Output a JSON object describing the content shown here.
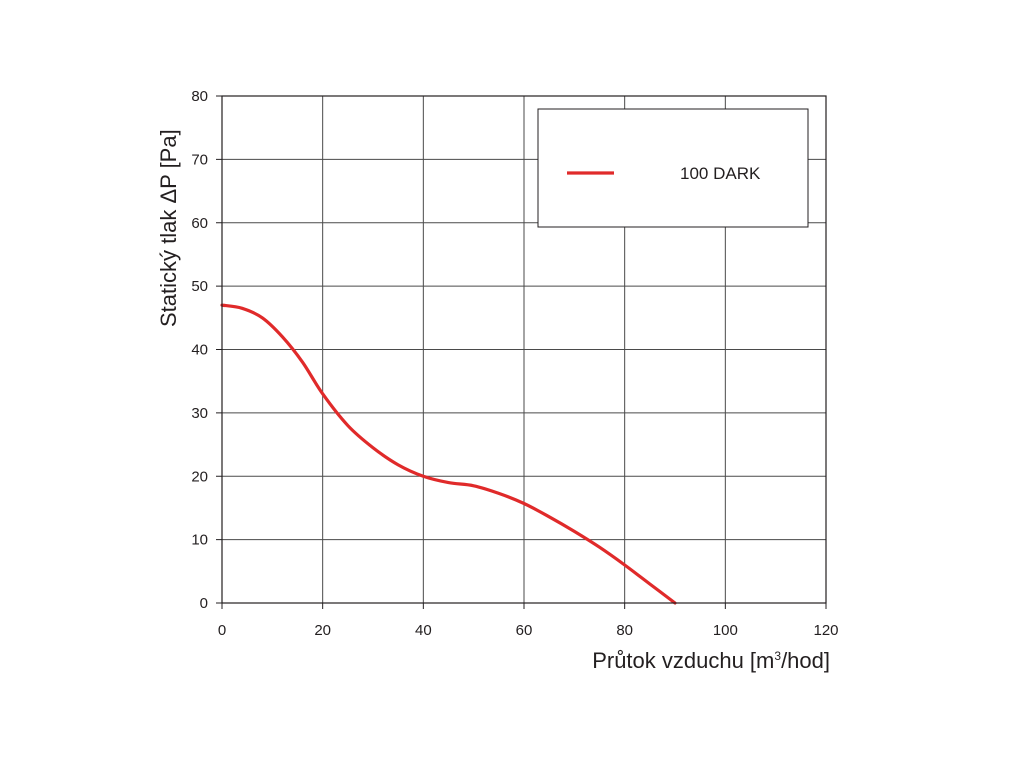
{
  "chart_data": {
    "type": "line",
    "xlabel": "Průtok vzduchu [m",
    "xlabel_superscript": "3",
    "xlabel_suffix": "/hod]",
    "ylabel": "Statický tlak  ΔP [Pa]",
    "xlim": [
      0,
      120
    ],
    "ylim": [
      0,
      80
    ],
    "x_ticks": [
      0,
      20,
      40,
      60,
      80,
      100,
      120
    ],
    "y_ticks": [
      0,
      10,
      20,
      30,
      40,
      50,
      60,
      70,
      80
    ],
    "grid": true,
    "legend_position": "top-right",
    "series": [
      {
        "name": "100 DARK",
        "color": "#e02a2a",
        "x": [
          0,
          4,
          8,
          12,
          16,
          20,
          25,
          30,
          35,
          40,
          45,
          50,
          55,
          60,
          65,
          70,
          75,
          80,
          85,
          90
        ],
        "y": [
          47,
          46.5,
          45,
          42,
          38,
          33,
          28,
          24.5,
          21.8,
          20,
          19,
          18.5,
          17.3,
          15.7,
          13.6,
          11.3,
          8.8,
          6.0,
          3.0,
          0
        ]
      }
    ]
  }
}
